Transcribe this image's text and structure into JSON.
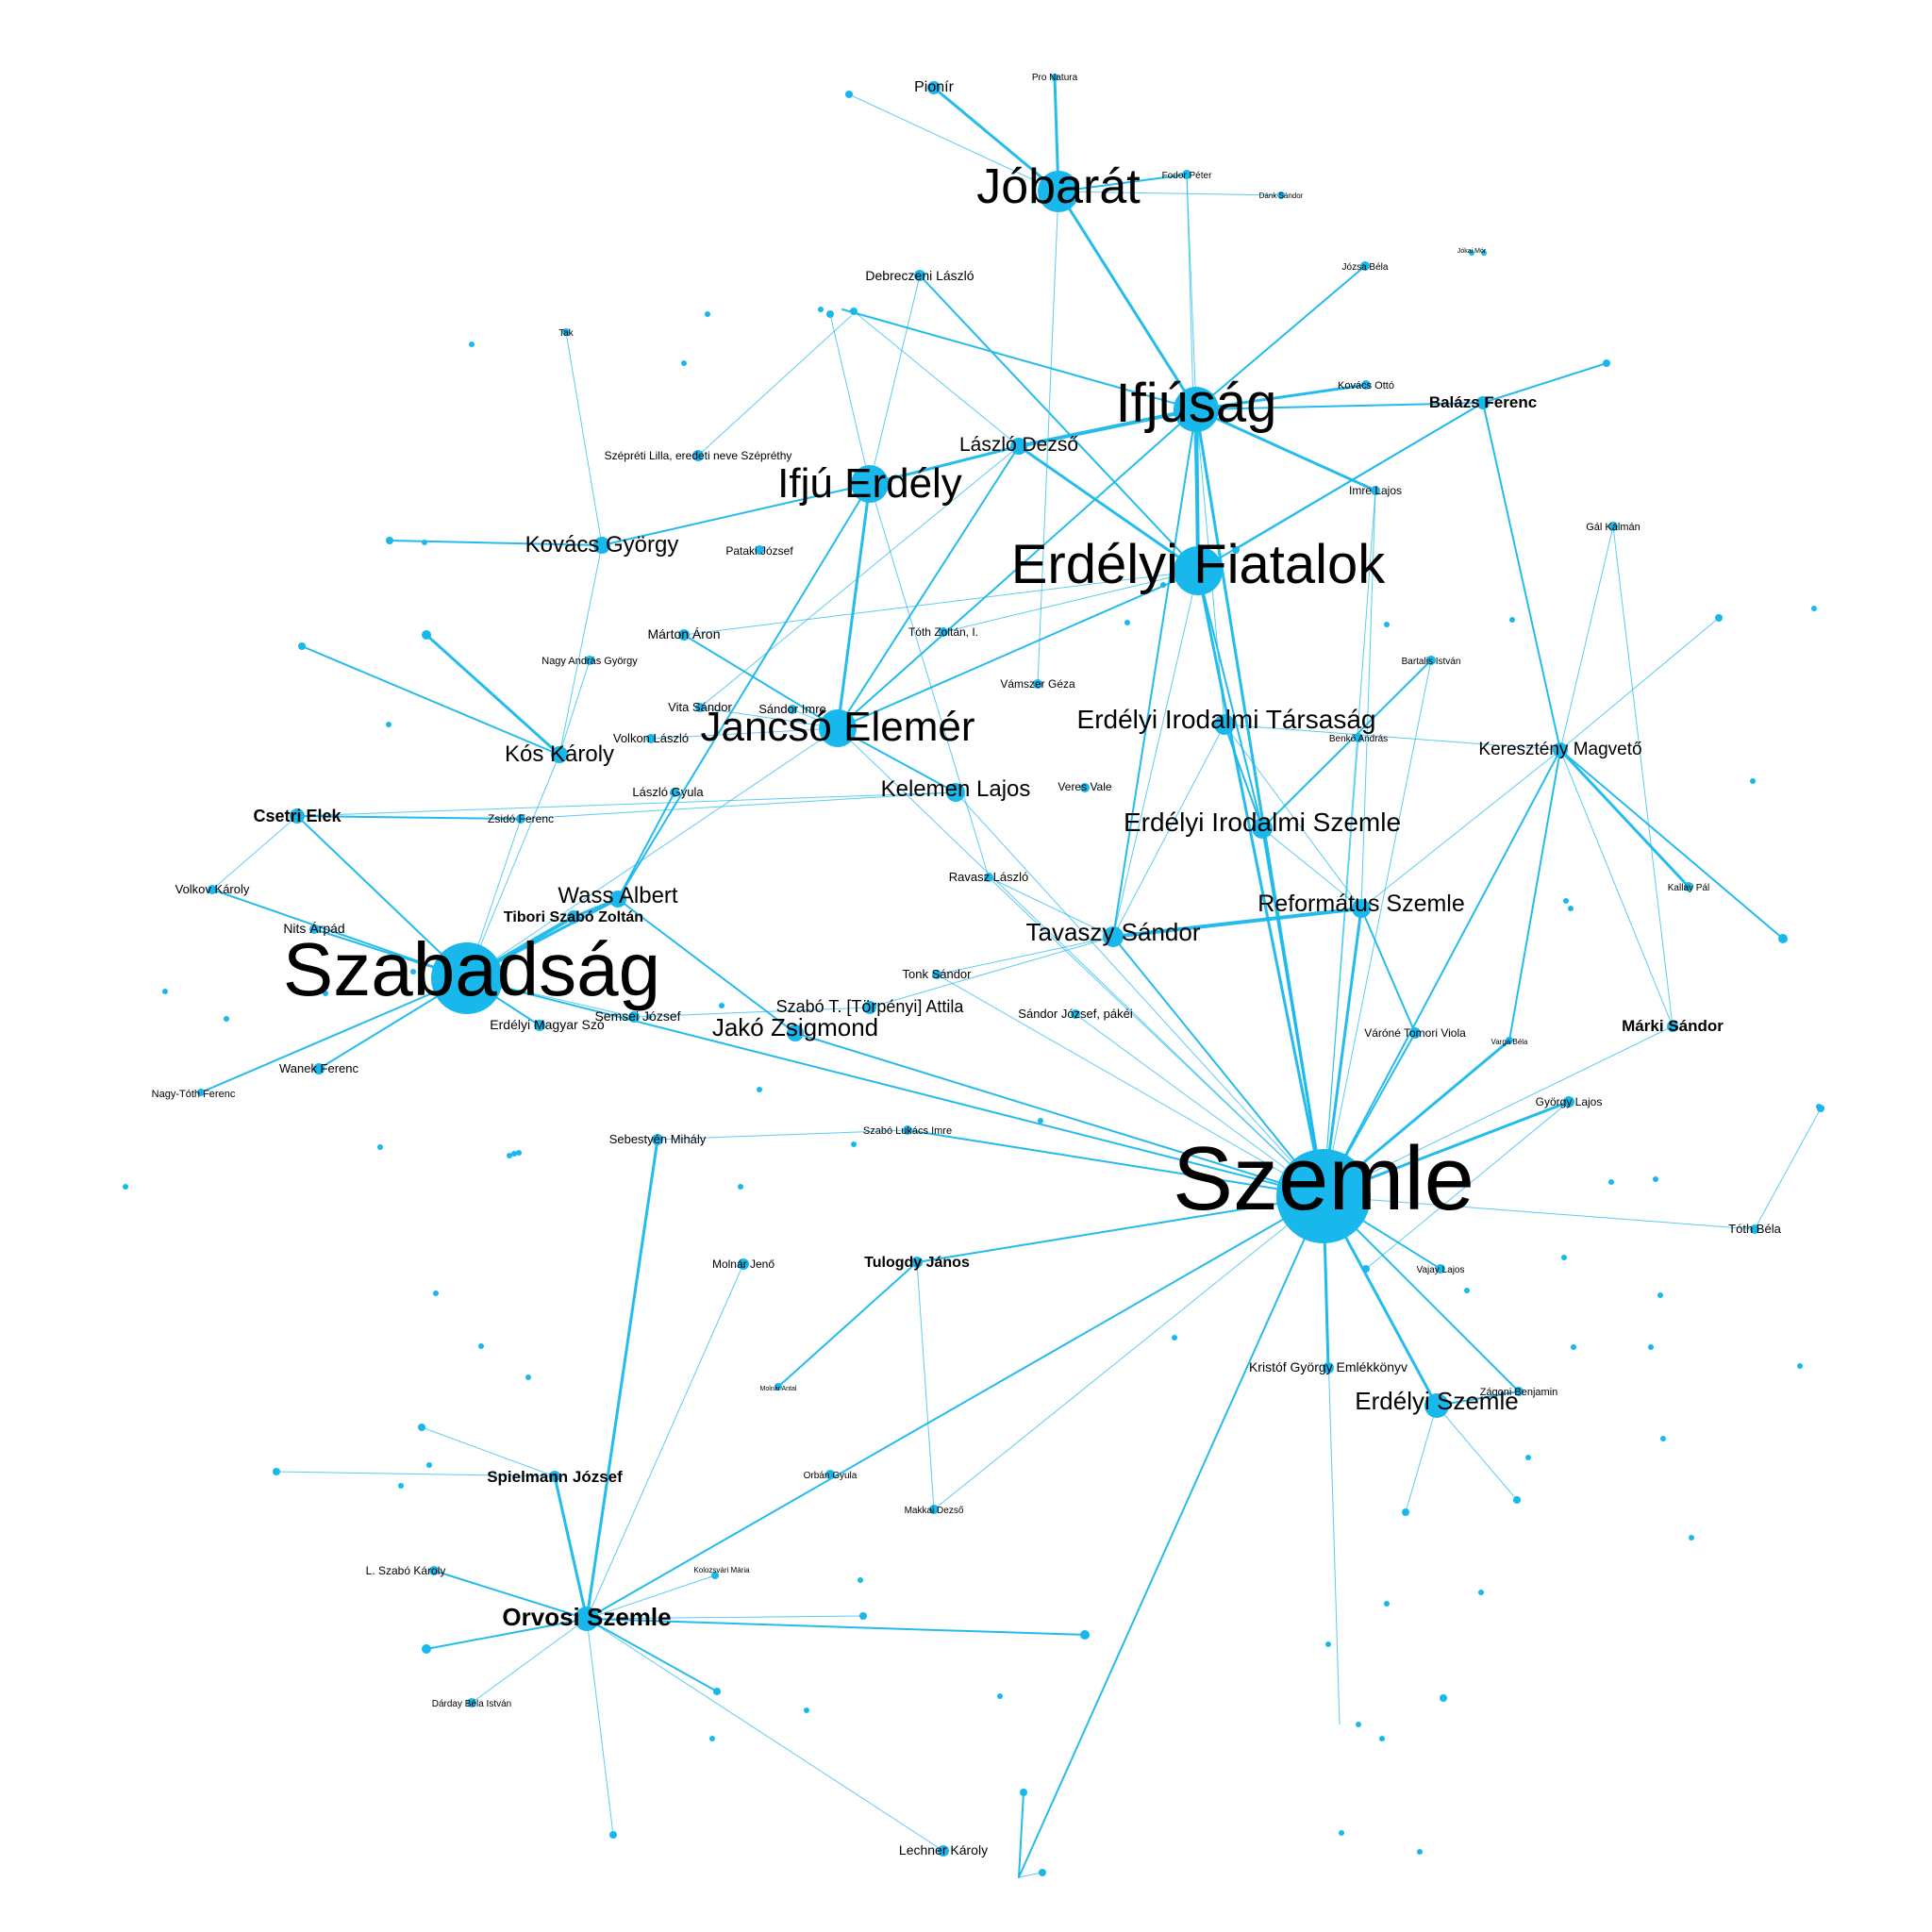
{
  "colors": {
    "node": "#18B8EC",
    "edge": "#18B8EC",
    "label": "#000000",
    "background": "#FFFFFF"
  },
  "nodes": [
    {
      "id": "szemle",
      "label": "Szemle"
    },
    {
      "id": "szabadsag",
      "label": "Szabadság"
    },
    {
      "id": "ifjusag",
      "label": "Ifjúság"
    },
    {
      "id": "erdfiat",
      "label": "Erdélyi Fiatalok"
    },
    {
      "id": "jobarat",
      "label": "Jóbarát"
    },
    {
      "id": "ifjuerdely",
      "label": "Ifjú Erdély"
    },
    {
      "id": "jancso",
      "label": "Jancsó Elemér"
    },
    {
      "id": "eitars",
      "label": "Erdélyi Irodalmi Társaság"
    },
    {
      "id": "eiszemle",
      "label": "Erdélyi Irodalmi Szemle"
    },
    {
      "id": "reformatus",
      "label": "Református Szemle"
    },
    {
      "id": "tavaszy",
      "label": "Tavaszy Sándor"
    },
    {
      "id": "kelemen",
      "label": "Kelemen Lajos"
    },
    {
      "id": "jako",
      "label": "Jakó Zsigmond"
    },
    {
      "id": "erdszemle",
      "label": "Erdélyi Szemle"
    },
    {
      "id": "wass",
      "label": "Wass Albert"
    },
    {
      "id": "kos",
      "label": "Kós Károly"
    },
    {
      "id": "kovacs",
      "label": "Kovács György"
    },
    {
      "id": "laszlod",
      "label": "László Dezső"
    },
    {
      "id": "orvosi",
      "label": "Orvosi Szemle"
    },
    {
      "id": "kerm",
      "label": "Keresztény Magvető"
    },
    {
      "id": "balazs",
      "label": "Balázs Ferenc"
    },
    {
      "id": "tibori",
      "label": "Tibori Szabó Zoltán"
    },
    {
      "id": "szabot",
      "label": "Szabó T. [Törpényi] Attila"
    },
    {
      "id": "csetri",
      "label": "Csetri Elek"
    },
    {
      "id": "marki",
      "label": "Márki Sándor"
    },
    {
      "id": "tulogdy",
      "label": "Tulogdy János"
    },
    {
      "id": "spielmann",
      "label": "Spielmann József"
    },
    {
      "id": "pionir",
      "label": "Pionír"
    },
    {
      "id": "debreczeni",
      "label": "Debreczeni László"
    },
    {
      "id": "marton",
      "label": "Márton Áron"
    },
    {
      "id": "volkovk",
      "label": "Volkov Károly"
    },
    {
      "id": "nits",
      "label": "Nits Árpád"
    },
    {
      "id": "wanek",
      "label": "Wanek Ferenc"
    },
    {
      "id": "nagytoth",
      "label": "Nagy-Tóth Ferenc"
    },
    {
      "id": "erdmagyar",
      "label": "Erdélyi Magyar Szó"
    },
    {
      "id": "semsei",
      "label": "Semsei József"
    },
    {
      "id": "sebestyen",
      "label": "Sebestyén Mihály"
    },
    {
      "id": "molnar",
      "label": "Molnár Jenő"
    },
    {
      "id": "lechner",
      "label": "Lechner Károly"
    },
    {
      "id": "kristof",
      "label": "Kristóf György Emlékkönyv"
    },
    {
      "id": "toth",
      "label": "Tóth Béla"
    },
    {
      "id": "gyorgyl",
      "label": "György Lajos"
    },
    {
      "id": "varone",
      "label": "Váróné Tomori Viola"
    },
    {
      "id": "sandorj",
      "label": "Sándor József, pákéi"
    },
    {
      "id": "ravasz",
      "label": "Ravasz László"
    },
    {
      "id": "tonk",
      "label": "Tonk Sándor"
    },
    {
      "id": "vitas",
      "label": "Vita Sándor"
    },
    {
      "id": "sandori",
      "label": "Sándor Imre"
    },
    {
      "id": "volkonl",
      "label": "Volkon László"
    },
    {
      "id": "laszlog",
      "label": "László Gyula"
    },
    {
      "id": "zsido",
      "label": "Zsidó Ferenc"
    },
    {
      "id": "szepreti",
      "label": "Szépréti Lilla, eredeti neve Szépréthy"
    },
    {
      "id": "pataki",
      "label": "Pataki József"
    },
    {
      "id": "tothz",
      "label": "Tóth Zoltán, I."
    },
    {
      "id": "vamszer",
      "label": "Vámszer Géza"
    },
    {
      "id": "verres",
      "label": "Veres Vale"
    },
    {
      "id": "imrel",
      "label": "Imre Lajos"
    },
    {
      "id": "nagya",
      "label": "Nagy András György"
    },
    {
      "id": "gall",
      "label": "Gál Kálmán"
    },
    {
      "id": "kovacsotto",
      "label": "Kovács Ottó"
    },
    {
      "id": "ld",
      "label": "L. Szabó Károly"
    },
    {
      "id": "kallay",
      "label": "Kallay Pál"
    },
    {
      "id": "darkes",
      "label": "Dárday Béla István"
    },
    {
      "id": "benkoa",
      "label": "Benkő András"
    },
    {
      "id": "bartalis",
      "label": "Bartalis István"
    },
    {
      "id": "jozsa",
      "label": "Józsa Béla"
    },
    {
      "id": "orbang",
      "label": "Orbán Gyula"
    },
    {
      "id": "makkai",
      "label": "Makkai Dezső"
    },
    {
      "id": "kolozs",
      "label": "Kolozsvári Mária"
    },
    {
      "id": "varga",
      "label": "Varga Béla"
    },
    {
      "id": "szaboi",
      "label": "Szabó Lukács Imre"
    },
    {
      "id": "vajaz",
      "label": "Vajay Lajos"
    },
    {
      "id": "zagb",
      "label": "Zágoni Benjamin"
    },
    {
      "id": "promat",
      "label": "Pro Natura"
    },
    {
      "id": "jokai",
      "label": "Jókai Mór"
    },
    {
      "id": "fodor",
      "label": "Fodor Péter"
    },
    {
      "id": "dank",
      "label": "Dánk Sándor"
    },
    {
      "id": "molnara",
      "label": "Molnár Antal"
    },
    {
      "id": "tak",
      "label": "Tak"
    }
  ]
}
